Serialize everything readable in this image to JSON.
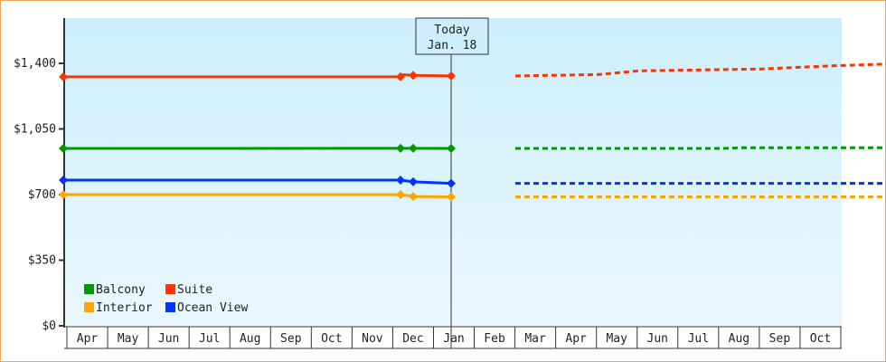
{
  "chart_data": {
    "type": "line",
    "title": "",
    "xlabel": "",
    "ylabel": "",
    "ylim": [
      0,
      1400
    ],
    "y_ticks": [
      "$0",
      "$350",
      "$700",
      "$1,050",
      "$1,400"
    ],
    "y_tick_values": [
      0,
      350,
      700,
      1050,
      1400
    ],
    "x_categories": [
      "Apr",
      "May",
      "Jun",
      "Jul",
      "Aug",
      "Sep",
      "Oct",
      "Nov",
      "Dec",
      "Jan",
      "Feb",
      "Mar",
      "Apr",
      "May",
      "Jun",
      "Jul",
      "Aug",
      "Sep",
      "Oct"
    ],
    "today_marker": {
      "line1": "Today",
      "line2": "Jan. 18"
    },
    "legend_position": "bottom-left inside",
    "series": [
      {
        "name": "Balcony",
        "color": "#009900",
        "history": [
          [
            0,
            946
          ],
          [
            8.3,
            947
          ],
          [
            8.6,
            947
          ],
          [
            9.5,
            946
          ]
        ],
        "forecast": [
          [
            9.5,
            946
          ],
          [
            14.5,
            946
          ],
          [
            15,
            950
          ],
          [
            19,
            950
          ]
        ]
      },
      {
        "name": "Suite",
        "color": "#ff3300",
        "history": [
          [
            0,
            1328
          ],
          [
            8.3,
            1328
          ],
          [
            8.35,
            1340
          ],
          [
            8.6,
            1336
          ],
          [
            9.5,
            1333
          ]
        ],
        "forecast": [
          [
            9.5,
            1333
          ],
          [
            11.5,
            1340
          ],
          [
            12.5,
            1360
          ],
          [
            15.5,
            1370
          ],
          [
            17,
            1385
          ],
          [
            19,
            1400
          ]
        ]
      },
      {
        "name": "Interior",
        "color": "#ffa500",
        "history": [
          [
            0,
            700
          ],
          [
            8.3,
            700
          ],
          [
            8.6,
            690
          ],
          [
            9.5,
            688
          ]
        ],
        "forecast": [
          [
            9.5,
            688
          ],
          [
            19,
            688
          ]
        ]
      },
      {
        "name": "Ocean View",
        "color": "#0033ff",
        "history": [
          [
            0,
            777
          ],
          [
            8.3,
            777
          ],
          [
            8.6,
            768
          ],
          [
            9.5,
            760
          ]
        ],
        "forecast": [
          [
            9.5,
            760
          ],
          [
            19,
            760
          ]
        ]
      }
    ]
  },
  "legend": [
    {
      "label": "Balcony",
      "color": "#009900"
    },
    {
      "label": "Suite",
      "color": "#ff3300"
    },
    {
      "label": "Interior",
      "color": "#ffa500"
    },
    {
      "label": "Ocean View",
      "color": "#0033ff"
    }
  ]
}
